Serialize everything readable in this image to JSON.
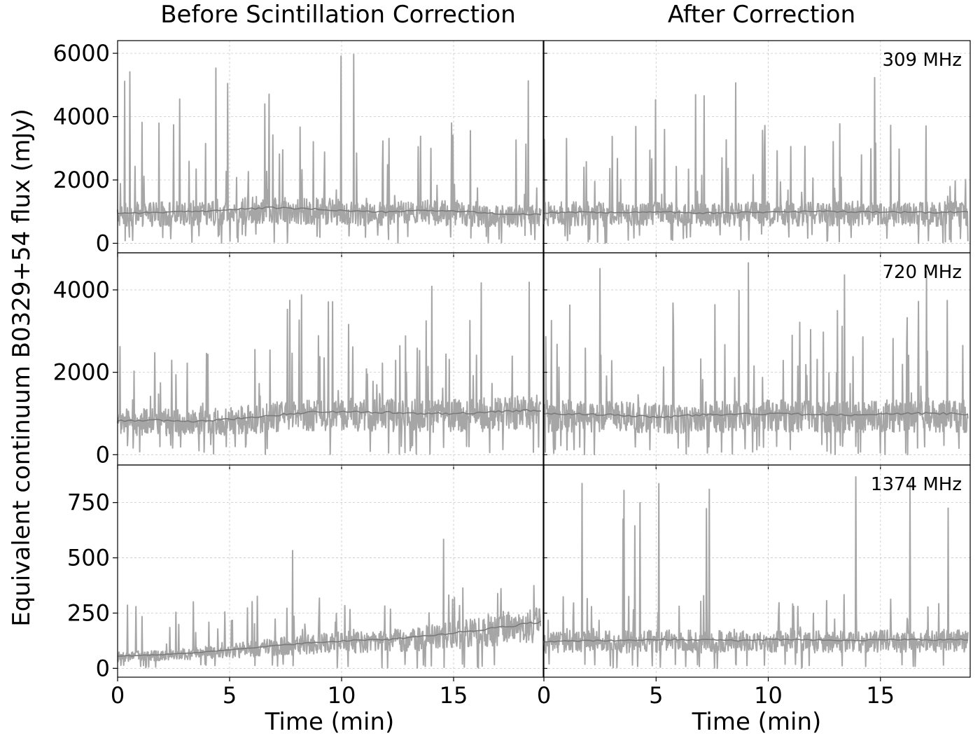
{
  "figure": {
    "column_titles": [
      "Before Scintillation Correction",
      "After Correction"
    ],
    "ylabel": "Equivalent   continuum   B0329+54   flux (mJy)",
    "xlabel": "Time (min)"
  },
  "chart_data": [
    {
      "type": "line",
      "panel": "before-309",
      "freq_label": "",
      "xlim": [
        0,
        19
      ],
      "ylim": [
        -300,
        6400
      ],
      "xticks": [
        0,
        5,
        10,
        15
      ],
      "yticks": [
        0,
        2000,
        4000,
        6000
      ],
      "x_end": 18.9,
      "baseline_trend": [
        950,
        970,
        1000,
        1060,
        1120,
        1080,
        1020,
        980,
        1040,
        1000,
        920,
        900
      ],
      "spike_max": 6100,
      "spike_typical": 2200,
      "floor": 300,
      "series": [
        {
          "values": "sampled-noise"
        }
      ]
    },
    {
      "type": "line",
      "panel": "after-309",
      "freq_label": "309 MHz",
      "xlim": [
        0,
        19
      ],
      "ylim": [
        -300,
        6400
      ],
      "xticks": [
        0,
        5,
        10,
        15
      ],
      "yticks": [
        0,
        2000,
        4000,
        6000
      ],
      "x_end": 18.9,
      "baseline_trend": [
        960,
        980,
        960,
        990,
        950,
        970,
        980,
        1000,
        990,
        980,
        970,
        980
      ],
      "spike_max": 6100,
      "spike_typical": 2200,
      "floor": 300,
      "series": [
        {
          "values": "sampled-noise"
        }
      ]
    },
    {
      "type": "line",
      "panel": "before-720",
      "freq_label": "",
      "xlim": [
        0,
        19
      ],
      "ylim": [
        -250,
        4900
      ],
      "xticks": [
        0,
        5,
        10,
        15
      ],
      "yticks": [
        0,
        2000,
        4000
      ],
      "x_end": 18.9,
      "baseline_trend": [
        820,
        830,
        800,
        860,
        950,
        1030,
        1040,
        1020,
        990,
        1000,
        1040,
        1080
      ],
      "spike_max": 4600,
      "spike_typical": 1800,
      "floor": 250,
      "series": [
        {
          "values": "sampled-noise"
        }
      ]
    },
    {
      "type": "line",
      "panel": "after-720",
      "freq_label": "720 MHz",
      "xlim": [
        0,
        19
      ],
      "ylim": [
        -250,
        4900
      ],
      "xticks": [
        0,
        5,
        10,
        15
      ],
      "yticks": [
        0,
        2000,
        4000
      ],
      "x_end": 18.9,
      "baseline_trend": [
        990,
        980,
        960,
        900,
        960,
        980,
        990,
        970,
        960,
        990,
        1000,
        980
      ],
      "spike_max": 4700,
      "spike_typical": 1800,
      "floor": 250,
      "series": [
        {
          "values": "sampled-noise"
        }
      ]
    },
    {
      "type": "line",
      "panel": "before-1374",
      "freq_label": "",
      "xlim": [
        0,
        19
      ],
      "ylim": [
        -40,
        920
      ],
      "xticks": [
        0,
        5,
        10,
        15
      ],
      "yticks": [
        0,
        250,
        500,
        750
      ],
      "x_end": 18.9,
      "baseline_trend": [
        55,
        60,
        70,
        85,
        100,
        115,
        125,
        130,
        145,
        165,
        185,
        210
      ],
      "spike_max": 600,
      "spike_typical": 180,
      "floor": 20,
      "series": [
        {
          "values": "sampled-noise"
        }
      ]
    },
    {
      "type": "line",
      "panel": "after-1374",
      "freq_label": "1374 MHz",
      "xlim": [
        0,
        19
      ],
      "ylim": [
        -40,
        920
      ],
      "xticks": [
        0,
        5,
        10,
        15
      ],
      "yticks": [
        0,
        250,
        500,
        750
      ],
      "x_end": 18.9,
      "baseline_trend": [
        120,
        125,
        125,
        130,
        128,
        125,
        130,
        128,
        126,
        130,
        128,
        130
      ],
      "spike_max": 870,
      "spike_typical": 160,
      "floor": 20,
      "series": [
        {
          "values": "sampled-noise"
        }
      ]
    }
  ]
}
